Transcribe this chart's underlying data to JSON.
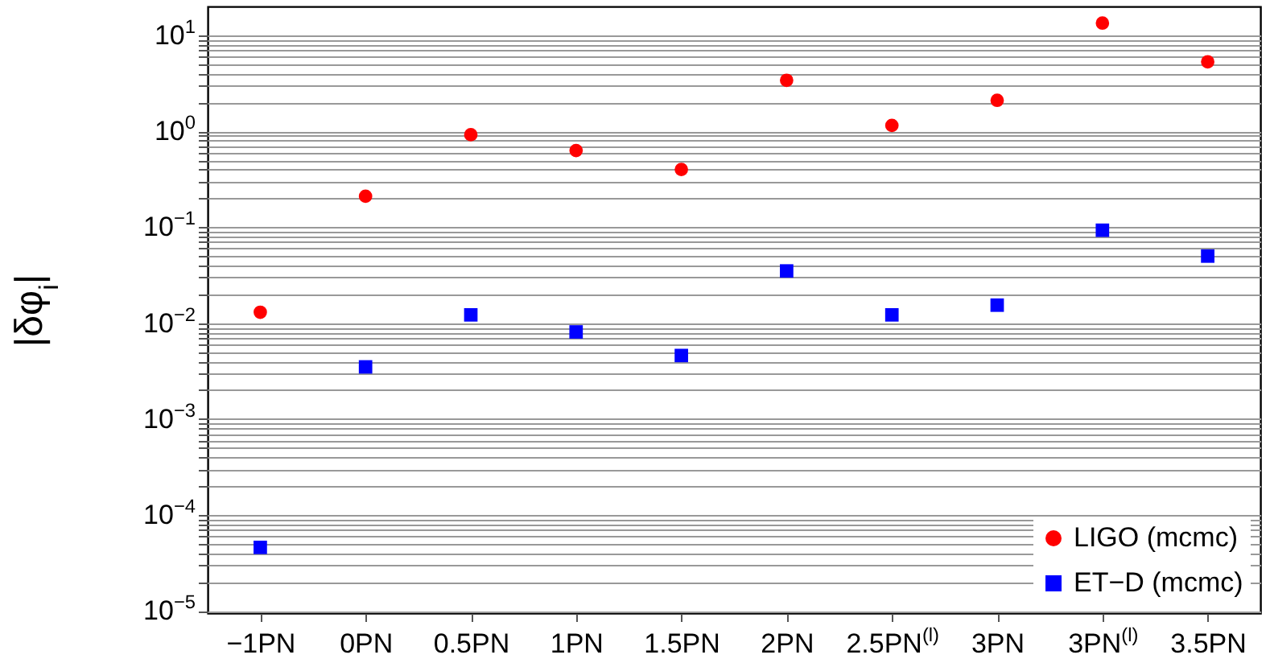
{
  "chart_data": {
    "type": "scatter",
    "ylabel": "|δφ$_{i}$|",
    "categories": [
      "−1PN",
      "0PN",
      "0.5PN",
      "1PN",
      "1.5PN",
      "2PN",
      "2.5PN$^{(l)}$",
      "3PN",
      "3PN$^{(l)}$",
      "3.5PN"
    ],
    "series": [
      {
        "name": "LIGO (mcmc)",
        "color": "#ff0000",
        "marker": "circle",
        "values": [
          0.013,
          0.21,
          0.92,
          0.63,
          0.4,
          3.4,
          1.15,
          2.1,
          13.4,
          5.3
        ]
      },
      {
        "name": "ET−D (mcmc)",
        "color": "#0000ff",
        "marker": "square",
        "values": [
          4.6e-05,
          0.0035,
          0.0122,
          0.0081,
          0.0046,
          0.035,
          0.0122,
          0.0154,
          0.093,
          0.05
        ]
      }
    ],
    "log": "y",
    "ylim": [
      9.5e-06,
      20
    ],
    "yticks": [
      {
        "value": 1e-05,
        "label": "10$^{−5}$"
      },
      {
        "value": 2e-05,
        "label": null
      },
      {
        "value": 3e-05,
        "label": null
      },
      {
        "value": 4e-05,
        "label": null
      },
      {
        "value": 5e-05,
        "label": null
      },
      {
        "value": 6e-05,
        "label": null
      },
      {
        "value": 7e-05,
        "label": null
      },
      {
        "value": 8e-05,
        "label": null
      },
      {
        "value": 9e-05,
        "label": null
      },
      {
        "value": 0.0001,
        "label": "10$^{−4}$"
      },
      {
        "value": 0.0002,
        "label": null
      },
      {
        "value": 0.0003,
        "label": null
      },
      {
        "value": 0.0004,
        "label": null
      },
      {
        "value": 0.0005,
        "label": null
      },
      {
        "value": 0.0006,
        "label": null
      },
      {
        "value": 0.0007,
        "label": null
      },
      {
        "value": 0.0008,
        "label": null
      },
      {
        "value": 0.0009,
        "label": null
      },
      {
        "value": 0.001,
        "label": "10$^{−3}$"
      },
      {
        "value": 0.002,
        "label": null
      },
      {
        "value": 0.003,
        "label": null
      },
      {
        "value": 0.004,
        "label": null
      },
      {
        "value": 0.005,
        "label": null
      },
      {
        "value": 0.006,
        "label": null
      },
      {
        "value": 0.007,
        "label": null
      },
      {
        "value": 0.008,
        "label": null
      },
      {
        "value": 0.009,
        "label": null
      },
      {
        "value": 0.01,
        "label": "10$^{−2}$"
      },
      {
        "value": 0.02,
        "label": null
      },
      {
        "value": 0.03,
        "label": null
      },
      {
        "value": 0.04,
        "label": null
      },
      {
        "value": 0.05,
        "label": null
      },
      {
        "value": 0.06,
        "label": null
      },
      {
        "value": 0.07,
        "label": null
      },
      {
        "value": 0.08,
        "label": null
      },
      {
        "value": 0.09,
        "label": null
      },
      {
        "value": 0.1,
        "label": "10$^{−1}$"
      },
      {
        "value": 0.2,
        "label": null
      },
      {
        "value": 0.3,
        "label": null
      },
      {
        "value": 0.4,
        "label": null
      },
      {
        "value": 0.5,
        "label": null
      },
      {
        "value": 0.6,
        "label": null
      },
      {
        "value": 0.7,
        "label": null
      },
      {
        "value": 0.8,
        "label": null
      },
      {
        "value": 0.9,
        "label": null
      },
      {
        "value": 1,
        "label": "10$^{0}$"
      },
      {
        "value": 2,
        "label": null
      },
      {
        "value": 3,
        "label": null
      },
      {
        "value": 4,
        "label": null
      },
      {
        "value": 5,
        "label": null
      },
      {
        "value": 6,
        "label": null
      },
      {
        "value": 7,
        "label": null
      },
      {
        "value": 8,
        "label": null
      },
      {
        "value": 9,
        "label": null
      },
      {
        "value": 10,
        "label": "10$^{1}$"
      }
    ],
    "grid": "y",
    "legend": "bottom right"
  }
}
